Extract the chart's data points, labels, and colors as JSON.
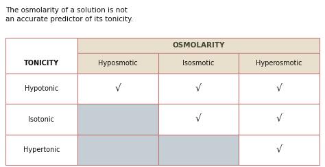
{
  "title_text": "The osmolarity of a solution is not\nan accurate predictor of its tonicity.",
  "title_fontsize": 7.5,
  "osmolarity_label": "OSMOLARITY",
  "tonicity_label": "TONICITY",
  "col_headers": [
    "Hyposmotic",
    "Isosmotic",
    "Hyperosmotic"
  ],
  "row_headers": [
    "Hypotonic",
    "Isotonic",
    "Hypertonic"
  ],
  "checkmarks": [
    [
      true,
      true,
      true
    ],
    [
      false,
      true,
      true
    ],
    [
      false,
      false,
      true
    ]
  ],
  "grey_cells": [
    [
      false,
      false,
      false
    ],
    [
      true,
      false,
      false
    ],
    [
      true,
      true,
      false
    ]
  ],
  "header_bg": "#E8E0CC",
  "cell_bg_white": "#FFFFFF",
  "cell_bg_grey": "#C5CDD5",
  "border_color": "#C07878",
  "text_color_black": "#111111",
  "fig_bg": "#FFFFFF",
  "fig_width": 4.74,
  "fig_height": 2.43,
  "dpi": 100
}
